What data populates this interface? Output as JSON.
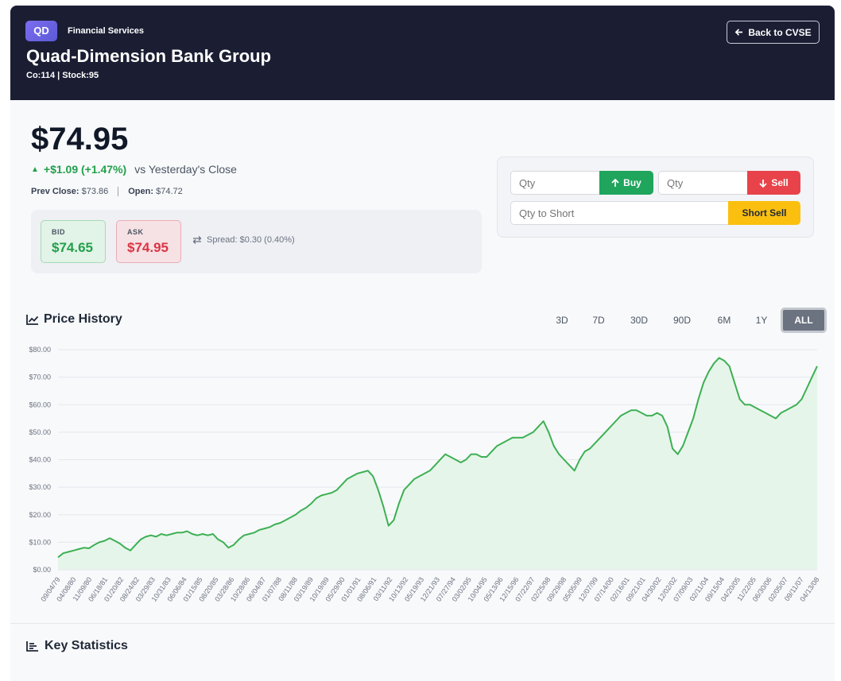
{
  "header": {
    "badge": "QD",
    "sector": "Financial Services",
    "company": "Quad-Dimension Bank Group",
    "ids": "Co:114 | Stock:95",
    "back_label": "Back to CVSE"
  },
  "quote": {
    "price": "$74.95",
    "change": "+$1.09 (+1.47%)",
    "vs": "vs Yesterday's Close",
    "prev_close_label": "Prev Close:",
    "prev_close": "$73.86",
    "open_label": "Open:",
    "open": "$74.72",
    "bid_label": "BID",
    "bid": "$74.65",
    "ask_label": "ASK",
    "ask": "$74.95",
    "spread": "Spread: $0.30 (0.40%)"
  },
  "trade": {
    "buy_placeholder": "Qty",
    "buy_label": "Buy",
    "sell_placeholder": "Qty",
    "sell_label": "Sell",
    "short_placeholder": "Qty to Short",
    "short_label": "Short Sell"
  },
  "price_history": {
    "title": "Price History",
    "ranges": [
      "3D",
      "7D",
      "30D",
      "90D",
      "6M",
      "1Y",
      "ALL"
    ],
    "active_range": "ALL"
  },
  "key_statistics": {
    "title": "Key Statistics"
  },
  "colors": {
    "line": "#3cb054",
    "fill": "#e6f5e9",
    "up": "#22a04b",
    "down": "#d93545",
    "header": "#1b1e33"
  },
  "chart_data": {
    "type": "area",
    "title": "",
    "xlabel": "",
    "ylabel": "",
    "ylim": [
      0,
      80
    ],
    "yticks": [
      "$0.00",
      "$10.00",
      "$20.00",
      "$30.00",
      "$40.00",
      "$50.00",
      "$60.00",
      "$70.00",
      "$80.00"
    ],
    "xticks": [
      "09/04/79",
      "04/08/80",
      "11/09/80",
      "06/18/81",
      "01/20/82",
      "08/24/82",
      "03/29/83",
      "10/31/83",
      "06/06/84",
      "01/15/85",
      "08/20/85",
      "03/28/86",
      "10/28/86",
      "06/04/87",
      "01/07/88",
      "08/11/88",
      "03/19/89",
      "10/19/89",
      "05/29/90",
      "01/01/91",
      "08/06/91",
      "03/11/92",
      "10/13/92",
      "05/19/93",
      "12/21/93",
      "07/27/94",
      "03/02/95",
      "10/04/95",
      "05/13/96",
      "12/15/96",
      "07/22/97",
      "02/25/98",
      "09/29/98",
      "05/05/99",
      "12/07/99",
      "07/14/00",
      "02/16/01",
      "09/21/01",
      "04/30/02",
      "12/02/02",
      "07/09/03",
      "02/11/04",
      "09/15/04",
      "04/20/05",
      "11/22/05",
      "06/30/06",
      "02/05/07",
      "09/11/07",
      "04/13/08"
    ],
    "grid": true,
    "legend": "none",
    "series": [
      {
        "values": [
          4.5,
          6,
          6.5,
          7,
          7.5,
          8,
          7.8,
          9,
          10,
          10.5,
          11.5,
          10.5,
          9.5,
          8,
          7,
          9,
          11,
          12,
          12.5,
          12,
          13,
          12.5,
          13,
          13.5,
          13.5,
          14,
          13,
          12.5,
          13,
          12.5,
          13,
          11,
          10,
          8,
          9,
          11,
          12.5,
          13,
          13.5,
          14.5,
          15,
          15.5,
          16.5,
          17,
          18,
          19,
          20,
          21.5,
          22.5,
          24,
          26,
          27,
          27.5,
          28,
          29,
          31,
          33,
          34,
          35,
          35.5,
          36,
          34,
          29,
          23,
          16,
          18,
          24,
          29,
          31,
          33,
          34,
          35,
          36,
          38,
          40,
          42,
          41,
          40,
          39,
          40,
          42,
          42,
          41,
          41,
          43,
          45,
          46,
          47,
          48,
          48,
          48,
          49,
          50,
          52,
          54,
          50,
          45,
          42,
          40,
          38,
          36,
          40,
          43,
          44,
          46,
          48,
          50,
          52,
          54,
          56,
          57,
          58,
          58,
          57,
          56,
          56,
          57,
          56,
          52,
          44,
          42,
          45,
          50,
          55,
          62,
          68,
          72,
          75,
          77,
          76,
          74,
          68,
          62,
          60,
          60,
          59,
          58,
          57,
          56,
          55,
          57,
          58,
          59,
          60,
          62,
          66,
          70,
          74
        ]
      }
    ]
  }
}
